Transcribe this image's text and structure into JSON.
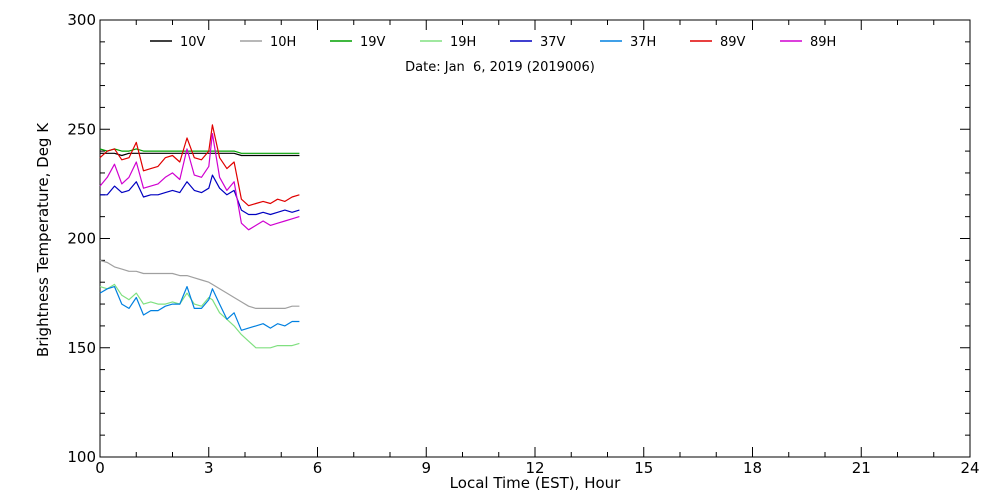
{
  "chart_data": {
    "type": "line",
    "xlabel": "Local Time (EST), Hour",
    "ylabel": "Brightness Temperature, Deg K",
    "annotation": "Date: Jan  6, 2019 (2019006)",
    "xlim": [
      0,
      24
    ],
    "ylim": [
      100,
      300
    ],
    "x_ticks": [
      0,
      3,
      6,
      9,
      12,
      15,
      18,
      21,
      24
    ],
    "y_ticks": [
      100,
      150,
      200,
      250,
      300
    ],
    "grid": false,
    "legend_position": "top",
    "x": [
      0.0,
      0.2,
      0.4,
      0.6,
      0.8,
      1.0,
      1.2,
      1.4,
      1.6,
      1.8,
      2.0,
      2.2,
      2.4,
      2.6,
      2.8,
      3.0,
      3.1,
      3.3,
      3.5,
      3.7,
      3.9,
      4.1,
      4.3,
      4.5,
      4.7,
      4.9,
      5.1,
      5.3,
      5.5
    ],
    "series": [
      {
        "name": "10V",
        "color": "#000000",
        "values": [
          239,
          239,
          239,
          238,
          239,
          239,
          239,
          239,
          239,
          239,
          239,
          239,
          239,
          239,
          239,
          239,
          239,
          239,
          239,
          239,
          238,
          238,
          238,
          238,
          238,
          238,
          238,
          238,
          238
        ]
      },
      {
        "name": "10H",
        "color": "#a0a0a0",
        "values": [
          190,
          189,
          187,
          186,
          185,
          185,
          184,
          184,
          184,
          184,
          184,
          183,
          183,
          182,
          181,
          180,
          179,
          177,
          175,
          173,
          171,
          169,
          168,
          168,
          168,
          168,
          168,
          169,
          169
        ]
      },
      {
        "name": "19V",
        "color": "#00a000",
        "values": [
          241,
          240,
          241,
          240,
          240,
          241,
          240,
          240,
          240,
          240,
          240,
          240,
          240,
          240,
          240,
          240,
          240,
          240,
          240,
          240,
          239,
          239,
          239,
          239,
          239,
          239,
          239,
          239,
          239
        ]
      },
      {
        "name": "19H",
        "color": "#80e080",
        "values": [
          178,
          177,
          179,
          174,
          172,
          175,
          170,
          171,
          170,
          170,
          171,
          170,
          175,
          170,
          169,
          173,
          172,
          166,
          163,
          160,
          156,
          153,
          150,
          150,
          150,
          151,
          151,
          151,
          152
        ]
      },
      {
        "name": "37V",
        "color": "#0000c0",
        "values": [
          220,
          220,
          224,
          221,
          222,
          226,
          219,
          220,
          220,
          221,
          222,
          221,
          226,
          222,
          221,
          223,
          229,
          223,
          220,
          222,
          213,
          211,
          211,
          212,
          211,
          212,
          213,
          212,
          213
        ]
      },
      {
        "name": "37H",
        "color": "#0080e0",
        "values": [
          175,
          177,
          178,
          170,
          168,
          173,
          165,
          167,
          167,
          169,
          170,
          170,
          178,
          168,
          168,
          172,
          177,
          170,
          163,
          166,
          158,
          159,
          160,
          161,
          159,
          161,
          160,
          162,
          162
        ]
      },
      {
        "name": "89V",
        "color": "#e00000",
        "values": [
          237,
          240,
          241,
          236,
          237,
          244,
          231,
          232,
          233,
          237,
          238,
          235,
          246,
          237,
          236,
          240,
          252,
          237,
          232,
          235,
          218,
          215,
          216,
          217,
          216,
          218,
          217,
          219,
          220
        ]
      },
      {
        "name": "89H",
        "color": "#d000d0",
        "values": [
          224,
          228,
          234,
          225,
          228,
          235,
          223,
          224,
          225,
          228,
          230,
          227,
          241,
          229,
          228,
          233,
          248,
          228,
          222,
          226,
          207,
          204,
          206,
          208,
          206,
          207,
          208,
          209,
          210
        ]
      }
    ]
  }
}
